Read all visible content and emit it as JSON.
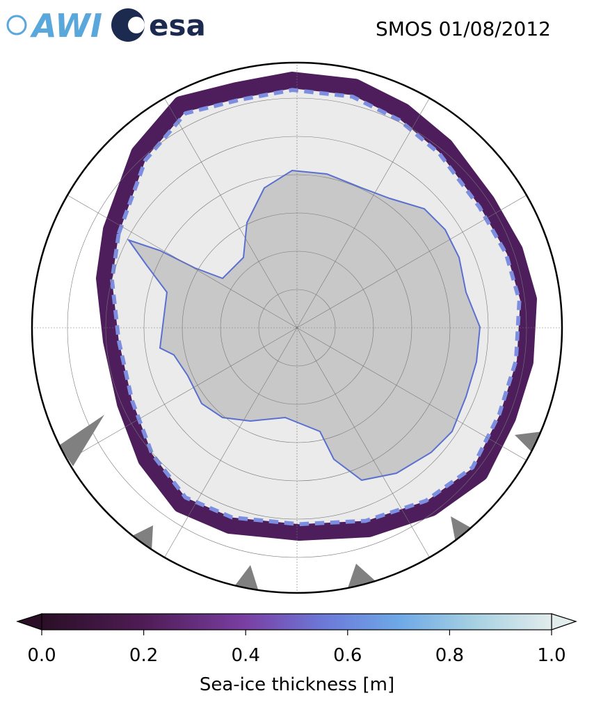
{
  "header": {
    "logos": [
      "AWI",
      "esa"
    ],
    "title": "SMOS 01/08/2012"
  },
  "colorbar": {
    "label": "Sea-ice thickness [m]",
    "range": [
      0,
      1
    ],
    "ticks": [
      {
        "value": 0,
        "label": "0.0"
      },
      {
        "value": 0.2,
        "label": "0.2"
      },
      {
        "value": 0.4,
        "label": "0.4"
      },
      {
        "value": 0.6,
        "label": "0.6"
      },
      {
        "value": 0.8,
        "label": "0.8"
      },
      {
        "value": 1,
        "label": "1.0"
      }
    ]
  }
}
